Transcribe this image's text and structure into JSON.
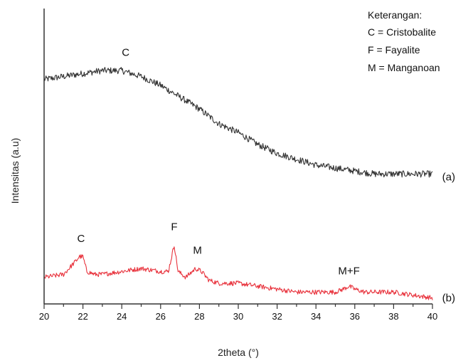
{
  "chart_data": {
    "type": "line",
    "xlabel": "2theta (°)",
    "ylabel": "Intensitas (a.u)",
    "xlim": [
      20,
      40
    ],
    "ylim": [
      0,
      100
    ],
    "xticks": [
      20,
      22,
      24,
      26,
      28,
      30,
      32,
      34,
      36,
      38,
      40
    ],
    "x_minor_step": 1,
    "legend_title": "Keterangan:",
    "legend_entries": [
      "C = Cristobalite",
      "F = Fayalite",
      "M = Manganoan"
    ],
    "legend_position": "top-right",
    "grid": false,
    "series": [
      {
        "name": "(a)",
        "color": "#333333",
        "x": [
          20,
          21,
          22,
          23,
          24,
          25,
          26,
          27,
          28,
          29,
          30,
          31,
          32,
          33,
          34,
          35,
          36,
          37,
          38,
          39,
          40
        ],
        "y": [
          76,
          77,
          78,
          79,
          79,
          77,
          74,
          70,
          66,
          61,
          58,
          54,
          51,
          49,
          47,
          46,
          45,
          44,
          44,
          44,
          44
        ]
      },
      {
        "name": "(b)",
        "color": "#e8323c",
        "x": [
          20,
          21,
          21.7,
          21.8,
          22,
          22.2,
          22.6,
          23,
          24,
          25,
          26,
          26.4,
          26.7,
          26.9,
          27.3,
          27.8,
          28.1,
          28.5,
          29,
          30,
          31,
          32,
          33,
          34,
          35,
          35.4,
          35.7,
          36,
          36.5,
          37,
          38,
          39,
          40
        ],
        "y": [
          9,
          10,
          15,
          16,
          16,
          11,
          10,
          10,
          11,
          12,
          11,
          11,
          20,
          11,
          9,
          12,
          11,
          8,
          7,
          7,
          6,
          5,
          4,
          4,
          4,
          5,
          6,
          5,
          4,
          4,
          4,
          3,
          2
        ]
      }
    ],
    "annotations": [
      {
        "text": "C",
        "x": 24.2,
        "y": 84
      },
      {
        "text": "C",
        "x": 21.9,
        "y": 21
      },
      {
        "text": "F",
        "x": 26.7,
        "y": 25
      },
      {
        "text": "M",
        "x": 27.9,
        "y": 17
      },
      {
        "text": "M+F",
        "x": 35.7,
        "y": 10
      }
    ],
    "series_tags": [
      {
        "text": "(a)",
        "x": 40.5,
        "y": 43
      },
      {
        "text": "(b)",
        "x": 40.5,
        "y": 2
      }
    ]
  }
}
